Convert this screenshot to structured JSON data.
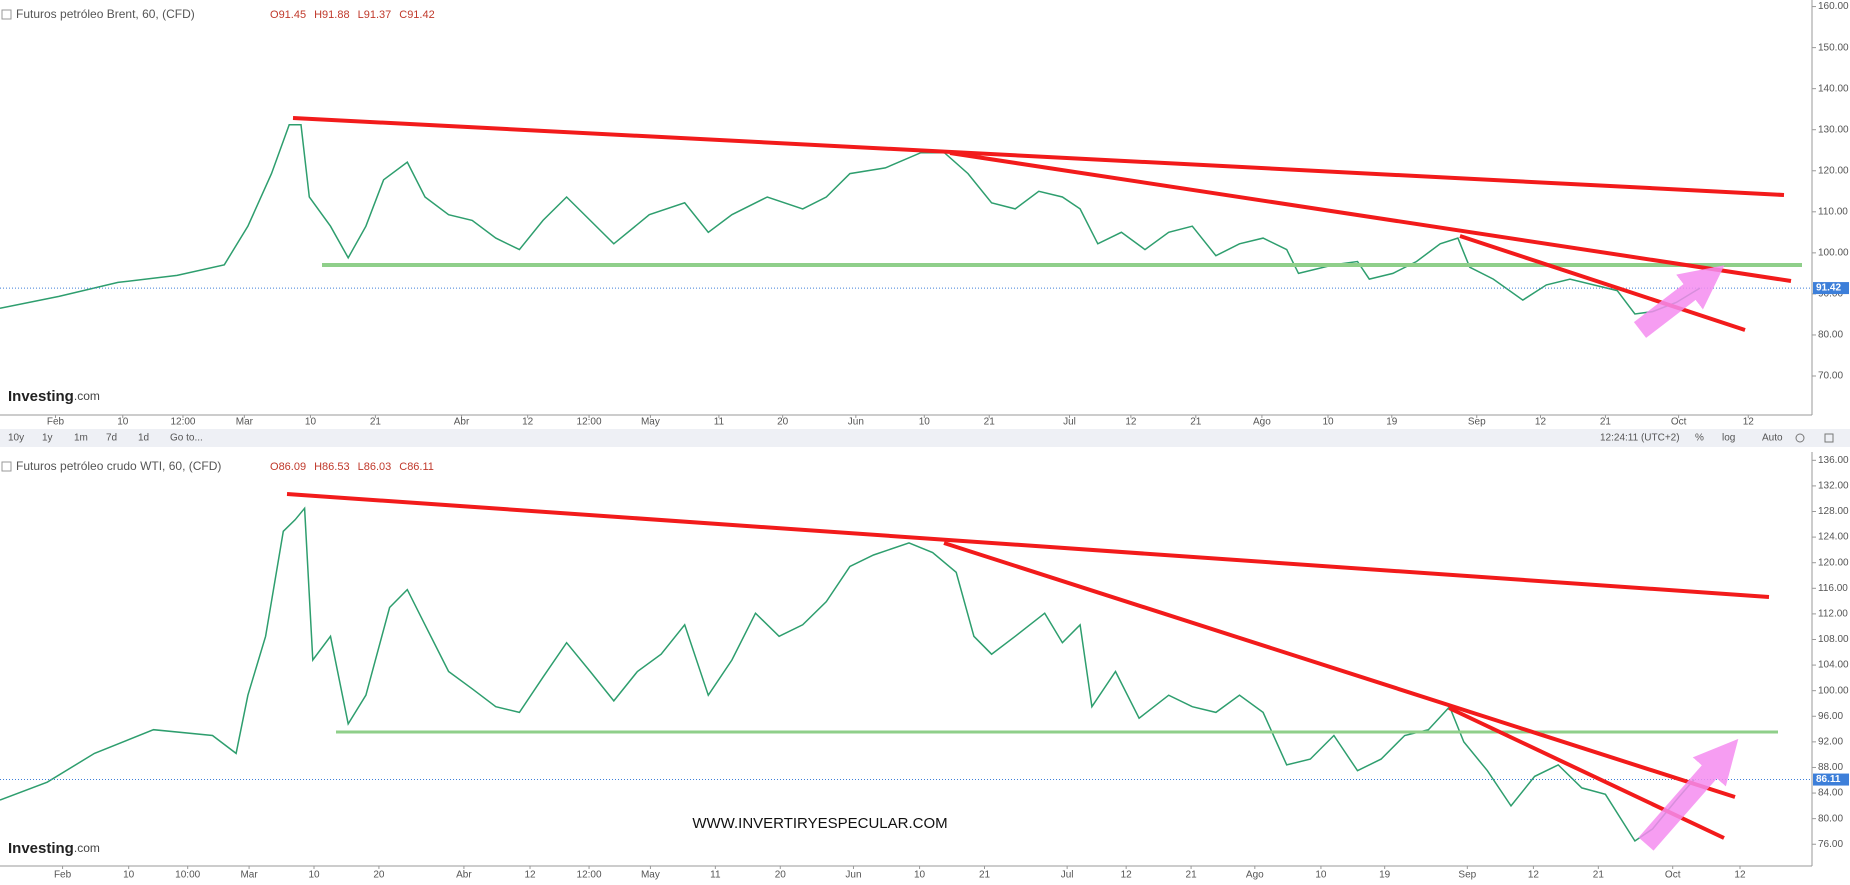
{
  "chart_data": [
    {
      "type": "line",
      "title": "Futuros petróleo Brent, 60, (CFD)",
      "ohlc": [
        {
          "label": "O",
          "value": 91.45
        },
        {
          "label": "H",
          "value": 91.88
        },
        {
          "label": "L",
          "value": 91.37
        },
        {
          "label": "C",
          "value": 91.42
        }
      ],
      "color": "#2e9e6e",
      "x": [
        0,
        50,
        100,
        150,
        190,
        210,
        230,
        245,
        255,
        262,
        280,
        295,
        310,
        325,
        345,
        360,
        380,
        400,
        420,
        440,
        460,
        480,
        500,
        520,
        550,
        580,
        600,
        620,
        650,
        680,
        700,
        720,
        750,
        780,
        800,
        820,
        840,
        860,
        880,
        900,
        915,
        930,
        950,
        970,
        990,
        1010,
        1030,
        1050,
        1070,
        1090,
        1100,
        1130,
        1150,
        1160,
        1180,
        1200,
        1220,
        1235,
        1245,
        1265,
        1290,
        1310,
        1330,
        1350,
        1370,
        1385,
        1400,
        1420,
        1440
      ],
      "values": [
        86.5,
        89.4,
        92.8,
        94.5,
        97.1,
        106.5,
        119.3,
        131.2,
        131.2,
        113.6,
        106.5,
        98.8,
        106.5,
        117.8,
        122.1,
        113.6,
        109.3,
        107.9,
        103.6,
        100.8,
        107.9,
        113.6,
        107.9,
        102.2,
        109.3,
        112.2,
        105,
        109.3,
        113.6,
        110.7,
        113.6,
        119.3,
        120.7,
        124.4,
        124.4,
        119.3,
        112.2,
        110.7,
        115,
        113.6,
        110.7,
        102.2,
        105,
        100.8,
        105,
        106.5,
        99.3,
        102.2,
        103.6,
        100.8,
        95,
        97.1,
        97.9,
        93.6,
        95,
        97.9,
        102.2,
        103.6,
        96.5,
        93.6,
        88.5,
        92.2,
        93.6,
        92.2,
        90.8,
        85.1,
        85.7,
        87.9,
        91.42
      ],
      "xlim": [
        0,
        1535
      ],
      "xticks": [
        {
          "value": 47,
          "label": "Feb"
        },
        {
          "value": 104,
          "label": "10"
        },
        {
          "value": 155,
          "label": "12:00"
        },
        {
          "value": 207,
          "label": "Mar"
        },
        {
          "value": 263,
          "label": "10"
        },
        {
          "value": 318,
          "label": "21"
        },
        {
          "value": 391,
          "label": "Abr"
        },
        {
          "value": 447,
          "label": "12"
        },
        {
          "value": 499,
          "label": "12:00"
        },
        {
          "value": 551,
          "label": "May"
        },
        {
          "value": 609,
          "label": "11"
        },
        {
          "value": 663,
          "label": "20"
        },
        {
          "value": 725,
          "label": "Jun"
        },
        {
          "value": 783,
          "label": "10"
        },
        {
          "value": 838,
          "label": "21"
        },
        {
          "value": 906,
          "label": "Jul"
        },
        {
          "value": 958,
          "label": "12"
        },
        {
          "value": 1013,
          "label": "21"
        },
        {
          "value": 1069,
          "label": "Ago"
        },
        {
          "value": 1125,
          "label": "10"
        },
        {
          "value": 1179,
          "label": "19"
        },
        {
          "value": 1251,
          "label": "Sep"
        },
        {
          "value": 1305,
          "label": "12"
        },
        {
          "value": 1360,
          "label": "21"
        },
        {
          "value": 1422,
          "label": "Oct"
        },
        {
          "value": 1481,
          "label": "12"
        }
      ],
      "ylim": [
        60.5,
        161.6
      ],
      "yticks": [
        {
          "value": 70,
          "label": "70.00"
        },
        {
          "value": 80,
          "label": "80.00"
        },
        {
          "value": 90,
          "label": "90.00"
        },
        {
          "value": 100,
          "label": "100.00"
        },
        {
          "value": 110,
          "label": "110.00"
        },
        {
          "value": 120,
          "label": "120.00"
        },
        {
          "value": 130,
          "label": "130.00"
        },
        {
          "value": 140,
          "label": "140.00"
        },
        {
          "value": 150,
          "label": "150.00"
        },
        {
          "value": 160,
          "label": "160.00"
        }
      ],
      "grid": false
    },
    {
      "type": "line",
      "title": "Futuros petróleo crudo WTI, 60, (CFD)",
      "ohlc": [
        {
          "label": "O",
          "value": 86.09
        },
        {
          "label": "H",
          "value": 86.53
        },
        {
          "label": "L",
          "value": 86.03
        },
        {
          "label": "C",
          "value": 86.11
        }
      ],
      "color": "#2e9e6e",
      "x": [
        0,
        40,
        80,
        130,
        180,
        200,
        210,
        225,
        240,
        250,
        258,
        265,
        280,
        295,
        310,
        330,
        345,
        360,
        380,
        400,
        420,
        440,
        460,
        480,
        500,
        520,
        540,
        560,
        580,
        600,
        620,
        640,
        660,
        680,
        700,
        720,
        740,
        770,
        790,
        810,
        825,
        840,
        860,
        885,
        900,
        915,
        925,
        945,
        965,
        990,
        1010,
        1030,
        1050,
        1070,
        1090,
        1110,
        1130,
        1150,
        1170,
        1190,
        1210,
        1228,
        1240,
        1260,
        1280,
        1300,
        1320,
        1340,
        1360,
        1385,
        1400,
        1420,
        1435
      ],
      "values": [
        82.9,
        85.7,
        90.2,
        93.9,
        93,
        90.2,
        99.3,
        108.5,
        124.9,
        126.7,
        128.5,
        104.8,
        108.5,
        94.8,
        99.3,
        113,
        115.8,
        110.3,
        103,
        100.3,
        97.5,
        96.6,
        102.1,
        107.5,
        103,
        98.4,
        103,
        105.7,
        110.3,
        99.3,
        104.8,
        112.1,
        108.5,
        110.3,
        113.9,
        119.4,
        121.2,
        123.1,
        121.6,
        118.5,
        108.5,
        105.7,
        108.5,
        112.1,
        107.5,
        110.3,
        97.5,
        103,
        95.7,
        99.3,
        97.5,
        96.6,
        99.3,
        96.6,
        88.4,
        89.3,
        93,
        87.5,
        89.3,
        93,
        93.9,
        97.5,
        92,
        87.5,
        82,
        86.6,
        88.4,
        84.8,
        83.8,
        76.5,
        78.4,
        82.9,
        86.11
      ],
      "xlim": [
        0,
        1535
      ],
      "xticks": [
        {
          "value": 53,
          "label": "Feb"
        },
        {
          "value": 109,
          "label": "10"
        },
        {
          "value": 159,
          "label": "10:00"
        },
        {
          "value": 211,
          "label": "Mar"
        },
        {
          "value": 266,
          "label": "10"
        },
        {
          "value": 321,
          "label": "20"
        },
        {
          "value": 393,
          "label": "Abr"
        },
        {
          "value": 449,
          "label": "12"
        },
        {
          "value": 499,
          "label": "12:00"
        },
        {
          "value": 551,
          "label": "May"
        },
        {
          "value": 606,
          "label": "11"
        },
        {
          "value": 661,
          "label": "20"
        },
        {
          "value": 723,
          "label": "Jun"
        },
        {
          "value": 779,
          "label": "10"
        },
        {
          "value": 834,
          "label": "21"
        },
        {
          "value": 904,
          "label": "Jul"
        },
        {
          "value": 954,
          "label": "12"
        },
        {
          "value": 1009,
          "label": "21"
        },
        {
          "value": 1063,
          "label": "Ago"
        },
        {
          "value": 1119,
          "label": "10"
        },
        {
          "value": 1173,
          "label": "19"
        },
        {
          "value": 1243,
          "label": "Sep"
        },
        {
          "value": 1299,
          "label": "12"
        },
        {
          "value": 1354,
          "label": "21"
        },
        {
          "value": 1417,
          "label": "Oct"
        },
        {
          "value": 1474,
          "label": "12"
        }
      ],
      "ylim": [
        72.6,
        137.3
      ],
      "yticks": [
        {
          "value": 76,
          "label": "76.00"
        },
        {
          "value": 80,
          "label": "80.00"
        },
        {
          "value": 84,
          "label": "84.00"
        },
        {
          "value": 88,
          "label": "88.00"
        },
        {
          "value": 92,
          "label": "92.00"
        },
        {
          "value": 96,
          "label": "96.00"
        },
        {
          "value": 100,
          "label": "100.00"
        },
        {
          "value": 104,
          "label": "104.00"
        },
        {
          "value": 108,
          "label": "108.00"
        },
        {
          "value": 112,
          "label": "112.00"
        },
        {
          "value": 116,
          "label": "116.00"
        },
        {
          "value": 120,
          "label": "120.00"
        },
        {
          "value": 124,
          "label": "124.00"
        },
        {
          "value": 128,
          "label": "128.00"
        },
        {
          "value": 132,
          "label": "132.00"
        },
        {
          "value": 136,
          "label": "136.00"
        }
      ],
      "grid": false
    }
  ],
  "toolbar": {
    "ranges": [
      "10y",
      "1y",
      "1m",
      "7d",
      "1d",
      "Go to..."
    ],
    "clock": "12:24:11 (UTC+2)",
    "options": [
      "%",
      "log",
      "Auto"
    ]
  },
  "watermark": {
    "brand": "Investing",
    "suffix": ".com"
  },
  "website": "WWW.INVERTIRYESPECULAR.COM"
}
